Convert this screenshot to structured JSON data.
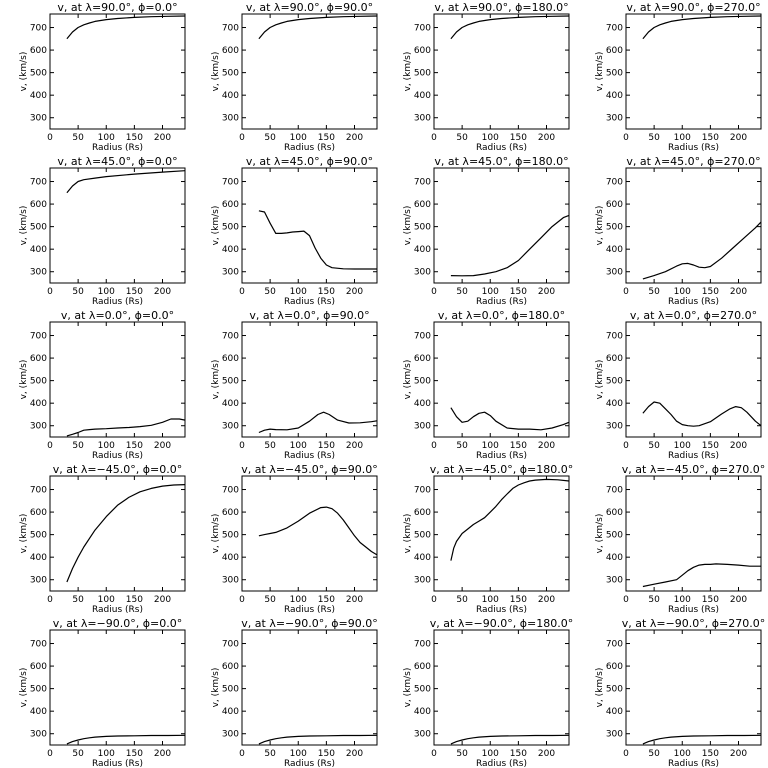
{
  "chart_data": [
    {
      "type": "line",
      "title": "v, at λ=90.0°, ϕ=0.0°",
      "xlabel": "Radius (Rs)",
      "ylabel": "v, (km/s)",
      "xlim": [
        0,
        240
      ],
      "ylim": [
        250,
        760
      ],
      "xticks": [
        0,
        50,
        100,
        150,
        200
      ],
      "yticks": [
        300,
        400,
        500,
        600,
        700
      ],
      "series": [
        {
          "x": [
            30,
            40,
            50,
            60,
            70,
            80,
            100,
            120,
            150,
            180,
            210,
            240
          ],
          "y": [
            650,
            680,
            700,
            712,
            720,
            727,
            735,
            740,
            745,
            748,
            750,
            751
          ]
        }
      ]
    },
    {
      "type": "line",
      "title": "v, at λ=90.0°, ϕ=90.0°",
      "xlabel": "Radius (Rs)",
      "ylabel": "v, (km/s)",
      "xlim": [
        0,
        240
      ],
      "ylim": [
        250,
        760
      ],
      "xticks": [
        0,
        50,
        100,
        150,
        200
      ],
      "yticks": [
        300,
        400,
        500,
        600,
        700
      ],
      "series": [
        {
          "x": [
            30,
            40,
            50,
            60,
            70,
            80,
            100,
            120,
            150,
            180,
            210,
            240
          ],
          "y": [
            650,
            680,
            700,
            712,
            720,
            727,
            735,
            740,
            745,
            748,
            750,
            751
          ]
        }
      ]
    },
    {
      "type": "line",
      "title": "v, at λ=90.0°, ϕ=180.0°",
      "xlabel": "Radius (Rs)",
      "ylabel": "v, (km/s)",
      "xlim": [
        0,
        240
      ],
      "ylim": [
        250,
        760
      ],
      "xticks": [
        0,
        50,
        100,
        150,
        200
      ],
      "yticks": [
        300,
        400,
        500,
        600,
        700
      ],
      "series": [
        {
          "x": [
            30,
            40,
            50,
            60,
            70,
            80,
            100,
            120,
            150,
            180,
            210,
            240
          ],
          "y": [
            650,
            680,
            700,
            712,
            720,
            727,
            735,
            740,
            745,
            748,
            750,
            751
          ]
        }
      ]
    },
    {
      "type": "line",
      "title": "v, at λ=90.0°, ϕ=270.0°",
      "xlabel": "Radius (Rs)",
      "ylabel": "v, (km/s)",
      "xlim": [
        0,
        240
      ],
      "ylim": [
        250,
        760
      ],
      "xticks": [
        0,
        50,
        100,
        150,
        200
      ],
      "yticks": [
        300,
        400,
        500,
        600,
        700
      ],
      "series": [
        {
          "x": [
            30,
            40,
            50,
            60,
            70,
            80,
            100,
            120,
            150,
            180,
            210,
            240
          ],
          "y": [
            650,
            680,
            700,
            712,
            720,
            727,
            735,
            740,
            745,
            748,
            750,
            751
          ]
        }
      ]
    },
    {
      "type": "line",
      "title": "v, at λ=45.0°, ϕ=0.0°",
      "xlabel": "Radius (Rs)",
      "ylabel": "v, (km/s)",
      "xlim": [
        0,
        240
      ],
      "ylim": [
        250,
        760
      ],
      "xticks": [
        0,
        50,
        100,
        150,
        200
      ],
      "yticks": [
        300,
        400,
        500,
        600,
        700
      ],
      "series": [
        {
          "x": [
            30,
            40,
            50,
            60,
            80,
            100,
            150,
            200,
            240
          ],
          "y": [
            650,
            680,
            700,
            708,
            715,
            722,
            733,
            742,
            748
          ]
        }
      ]
    },
    {
      "type": "line",
      "title": "v, at λ=45.0°, ϕ=90.0°",
      "xlabel": "Radius (Rs)",
      "ylabel": "v, (km/s)",
      "xlim": [
        0,
        240
      ],
      "ylim": [
        250,
        760
      ],
      "xticks": [
        0,
        50,
        100,
        150,
        200
      ],
      "yticks": [
        300,
        400,
        500,
        600,
        700
      ],
      "series": [
        {
          "x": [
            30,
            40,
            50,
            60,
            70,
            80,
            90,
            100,
            110,
            120,
            130,
            140,
            150,
            160,
            180,
            200,
            220,
            240
          ],
          "y": [
            570,
            565,
            515,
            470,
            470,
            472,
            476,
            478,
            480,
            460,
            405,
            360,
            330,
            318,
            313,
            312,
            312,
            312
          ]
        }
      ]
    },
    {
      "type": "line",
      "title": "v, at λ=45.0°, ϕ=180.0°",
      "xlabel": "Radius (Rs)",
      "ylabel": "v, (km/s)",
      "xlim": [
        0,
        240
      ],
      "ylim": [
        250,
        760
      ],
      "xticks": [
        0,
        50,
        100,
        150,
        200
      ],
      "yticks": [
        300,
        400,
        500,
        600,
        700
      ],
      "series": [
        {
          "x": [
            30,
            50,
            70,
            90,
            110,
            130,
            150,
            170,
            190,
            210,
            230,
            240
          ],
          "y": [
            283,
            282,
            283,
            290,
            300,
            318,
            350,
            400,
            450,
            500,
            540,
            550
          ]
        }
      ]
    },
    {
      "type": "line",
      "title": "v, at λ=45.0°, ϕ=270.0°",
      "xlabel": "Radius (Rs)",
      "ylabel": "v, (km/s)",
      "xlim": [
        0,
        240
      ],
      "ylim": [
        250,
        760
      ],
      "xticks": [
        0,
        50,
        100,
        150,
        200
      ],
      "yticks": [
        300,
        400,
        500,
        600,
        700
      ],
      "series": [
        {
          "x": [
            30,
            50,
            70,
            90,
            100,
            110,
            120,
            130,
            140,
            150,
            170,
            190,
            210,
            230,
            240
          ],
          "y": [
            268,
            283,
            300,
            325,
            335,
            337,
            330,
            320,
            318,
            323,
            360,
            405,
            450,
            495,
            520
          ]
        }
      ]
    },
    {
      "type": "line",
      "title": "v, at λ=0.0°, ϕ=0.0°",
      "xlabel": "Radius (Rs)",
      "ylabel": "v, (km/s)",
      "xlim": [
        0,
        240
      ],
      "ylim": [
        250,
        760
      ],
      "xticks": [
        0,
        50,
        100,
        150,
        200
      ],
      "yticks": [
        300,
        400,
        500,
        600,
        700
      ],
      "series": [
        {
          "x": [
            30,
            40,
            50,
            60,
            70,
            80,
            100,
            120,
            140,
            160,
            180,
            200,
            215,
            230,
            240
          ],
          "y": [
            255,
            262,
            270,
            280,
            283,
            285,
            287,
            290,
            292,
            296,
            302,
            315,
            330,
            330,
            325
          ]
        }
      ]
    },
    {
      "type": "line",
      "title": "v, at λ=0.0°, ϕ=90.0°",
      "xlabel": "Radius (Rs)",
      "ylabel": "v, (km/s)",
      "xlim": [
        0,
        240
      ],
      "ylim": [
        250,
        760
      ],
      "xticks": [
        0,
        50,
        100,
        150,
        200
      ],
      "yticks": [
        300,
        400,
        500,
        600,
        700
      ],
      "series": [
        {
          "x": [
            30,
            40,
            50,
            60,
            80,
            100,
            120,
            135,
            145,
            155,
            170,
            190,
            210,
            230,
            240
          ],
          "y": [
            270,
            280,
            285,
            283,
            282,
            290,
            320,
            350,
            360,
            350,
            325,
            312,
            313,
            318,
            322
          ]
        }
      ]
    },
    {
      "type": "line",
      "title": "v, at λ=0.0°, ϕ=180.0°",
      "xlabel": "Radius (Rs)",
      "ylabel": "v, (km/s)",
      "xlim": [
        0,
        240
      ],
      "ylim": [
        250,
        760
      ],
      "xticks": [
        0,
        50,
        100,
        150,
        200
      ],
      "yticks": [
        300,
        400,
        500,
        600,
        700
      ],
      "series": [
        {
          "x": [
            30,
            40,
            50,
            60,
            70,
            80,
            90,
            100,
            110,
            130,
            150,
            170,
            190,
            210,
            230,
            240
          ],
          "y": [
            380,
            340,
            315,
            320,
            340,
            355,
            360,
            345,
            320,
            290,
            285,
            285,
            282,
            290,
            305,
            315
          ]
        }
      ]
    },
    {
      "type": "line",
      "title": "v, at λ=0.0°, ϕ=270.0°",
      "xlabel": "Radius (Rs)",
      "ylabel": "v, (km/s)",
      "xlim": [
        0,
        240
      ],
      "ylim": [
        250,
        760
      ],
      "xticks": [
        0,
        50,
        100,
        150,
        200
      ],
      "yticks": [
        300,
        400,
        500,
        600,
        700
      ],
      "series": [
        {
          "x": [
            30,
            40,
            50,
            60,
            70,
            80,
            90,
            100,
            110,
            120,
            130,
            150,
            170,
            185,
            195,
            205,
            215,
            230,
            240
          ],
          "y": [
            355,
            385,
            405,
            400,
            375,
            350,
            320,
            305,
            300,
            298,
            300,
            318,
            352,
            375,
            385,
            380,
            360,
            320,
            300
          ]
        }
      ]
    },
    {
      "type": "line",
      "title": "v, at λ=−45.0°, ϕ=0.0°",
      "xlabel": "Radius (Rs)",
      "ylabel": "v, (km/s)",
      "xlim": [
        0,
        240
      ],
      "ylim": [
        250,
        760
      ],
      "xticks": [
        0,
        50,
        100,
        150,
        200
      ],
      "yticks": [
        300,
        400,
        500,
        600,
        700
      ],
      "series": [
        {
          "x": [
            30,
            40,
            50,
            60,
            80,
            100,
            120,
            140,
            160,
            180,
            200,
            220,
            240
          ],
          "y": [
            290,
            350,
            400,
            445,
            520,
            580,
            630,
            665,
            690,
            705,
            715,
            720,
            722
          ]
        }
      ]
    },
    {
      "type": "line",
      "title": "v, at λ=−45.0°, ϕ=90.0°",
      "xlabel": "Radius (Rs)",
      "ylabel": "v, (km/s)",
      "xlim": [
        0,
        240
      ],
      "ylim": [
        250,
        760
      ],
      "xticks": [
        0,
        50,
        100,
        150,
        200
      ],
      "yticks": [
        300,
        400,
        500,
        600,
        700
      ],
      "series": [
        {
          "x": [
            30,
            40,
            50,
            60,
            80,
            100,
            120,
            140,
            150,
            160,
            170,
            180,
            190,
            200,
            210,
            220,
            230,
            240
          ],
          "y": [
            495,
            500,
            505,
            510,
            530,
            560,
            595,
            620,
            622,
            615,
            595,
            565,
            530,
            495,
            465,
            445,
            425,
            410
          ]
        }
      ]
    },
    {
      "type": "line",
      "title": "v, at λ=−45.0°, ϕ=180.0°",
      "xlabel": "Radius (Rs)",
      "ylabel": "v, (km/s)",
      "xlim": [
        0,
        240
      ],
      "ylim": [
        250,
        760
      ],
      "xticks": [
        0,
        50,
        100,
        150,
        200
      ],
      "yticks": [
        300,
        400,
        500,
        600,
        700
      ],
      "series": [
        {
          "x": [
            30,
            35,
            40,
            50,
            60,
            70,
            80,
            90,
            100,
            110,
            120,
            130,
            140,
            150,
            160,
            170,
            180,
            200,
            220,
            240
          ],
          "y": [
            385,
            440,
            470,
            505,
            525,
            545,
            560,
            575,
            600,
            625,
            655,
            680,
            705,
            720,
            730,
            738,
            742,
            745,
            743,
            738
          ]
        }
      ]
    },
    {
      "type": "line",
      "title": "v, at λ=−45.0°, ϕ=270.0°",
      "xlabel": "Radius (Rs)",
      "ylabel": "v, (km/s)",
      "xlim": [
        0,
        240
      ],
      "ylim": [
        250,
        760
      ],
      "xticks": [
        0,
        50,
        100,
        150,
        200
      ],
      "yticks": [
        300,
        400,
        500,
        600,
        700
      ],
      "series": [
        {
          "x": [
            30,
            50,
            70,
            90,
            100,
            110,
            120,
            130,
            140,
            150,
            160,
            180,
            200,
            220,
            240
          ],
          "y": [
            270,
            280,
            290,
            300,
            320,
            340,
            355,
            365,
            368,
            368,
            370,
            368,
            365,
            360,
            360
          ]
        }
      ]
    },
    {
      "type": "line",
      "title": "v, at λ=−90.0°, ϕ=0.0°",
      "xlabel": "Radius (Rs)",
      "ylabel": "v, (km/s)",
      "xlim": [
        0,
        240
      ],
      "ylim": [
        250,
        760
      ],
      "xticks": [
        0,
        50,
        100,
        150,
        200
      ],
      "yticks": [
        300,
        400,
        500,
        600,
        700
      ],
      "series": [
        {
          "x": [
            30,
            40,
            50,
            60,
            70,
            80,
            100,
            120,
            150,
            180,
            210,
            240
          ],
          "y": [
            255,
            265,
            272,
            278,
            282,
            285,
            288,
            290,
            291,
            292,
            292,
            293
          ]
        }
      ]
    },
    {
      "type": "line",
      "title": "v, at λ=−90.0°, ϕ=90.0°",
      "xlabel": "Radius (Rs)",
      "ylabel": "v, (km/s)",
      "xlim": [
        0,
        240
      ],
      "ylim": [
        250,
        760
      ],
      "xticks": [
        0,
        50,
        100,
        150,
        200
      ],
      "yticks": [
        300,
        400,
        500,
        600,
        700
      ],
      "series": [
        {
          "x": [
            30,
            40,
            50,
            60,
            70,
            80,
            100,
            120,
            150,
            180,
            210,
            240
          ],
          "y": [
            255,
            265,
            272,
            278,
            282,
            285,
            288,
            290,
            291,
            292,
            292,
            293
          ]
        }
      ]
    },
    {
      "type": "line",
      "title": "v, at λ=−90.0°, ϕ=180.0°",
      "xlabel": "Radius (Rs)",
      "ylabel": "v, (km/s)",
      "xlim": [
        0,
        240
      ],
      "ylim": [
        250,
        760
      ],
      "xticks": [
        0,
        50,
        100,
        150,
        200
      ],
      "yticks": [
        300,
        400,
        500,
        600,
        700
      ],
      "series": [
        {
          "x": [
            30,
            40,
            50,
            60,
            70,
            80,
            100,
            120,
            150,
            180,
            210,
            240
          ],
          "y": [
            255,
            265,
            272,
            278,
            282,
            285,
            288,
            290,
            291,
            292,
            292,
            293
          ]
        }
      ]
    },
    {
      "type": "line",
      "title": "v, at λ=−90.0°, ϕ=270.0°",
      "xlabel": "Radius (Rs)",
      "ylabel": "v, (km/s)",
      "xlim": [
        0,
        240
      ],
      "ylim": [
        250,
        760
      ],
      "xticks": [
        0,
        50,
        100,
        150,
        200
      ],
      "yticks": [
        300,
        400,
        500,
        600,
        700
      ],
      "series": [
        {
          "x": [
            30,
            40,
            50,
            60,
            70,
            80,
            100,
            120,
            150,
            180,
            210,
            240
          ],
          "y": [
            255,
            265,
            272,
            278,
            282,
            285,
            288,
            290,
            291,
            292,
            292,
            293
          ]
        }
      ]
    }
  ]
}
